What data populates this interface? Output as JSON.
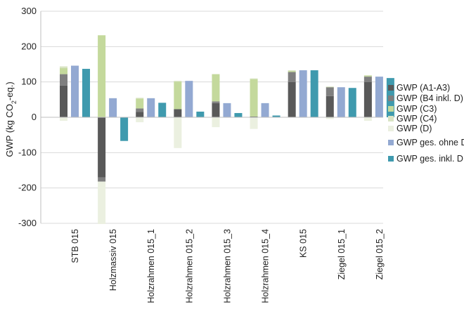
{
  "chart_data": {
    "type": "bar",
    "stacked_components": true,
    "ylabel_parts": {
      "main": "GWP (kg CO",
      "sub": "2",
      "tail": "-eq.)"
    },
    "ylim": [
      -300,
      300
    ],
    "yticks": [
      -300,
      -200,
      -100,
      0,
      100,
      200,
      300
    ],
    "grid": true,
    "legend_position": "right",
    "categories": [
      "STB 015",
      "Holzmassiv 015",
      "Holzrahmen 015_1",
      "Holzrahmen 015_2",
      "Holzrahmen 015_3",
      "Holzrahmen 015_4",
      "KS 015",
      "Ziegel 015_1",
      "Ziegel 015_2"
    ],
    "stack_series": [
      {
        "name": "GWP (A1-A3)",
        "color": "#595959",
        "values": [
          90,
          -170,
          15,
          23,
          40,
          2,
          100,
          60,
          100
        ]
      },
      {
        "name": "GWP (B4 inkl. D)",
        "color": "#7f7f7f",
        "values": [
          32,
          -12,
          10,
          0,
          5,
          0,
          28,
          25,
          15
        ]
      },
      {
        "name": "GWP (C3)",
        "color": "#c4d99c",
        "values": [
          17,
          232,
          28,
          78,
          77,
          106,
          3,
          1,
          3
        ]
      },
      {
        "name": "GWP (C4)",
        "color": "#d9e4c4",
        "values": [
          5,
          0,
          2,
          2,
          0,
          2,
          2,
          1,
          1
        ]
      },
      {
        "name": "GWP (D)",
        "color": "#ebf0e0",
        "values": [
          -10,
          -120,
          -14,
          -87,
          -28,
          -33,
          0,
          -5,
          -10
        ]
      }
    ],
    "total_series": [
      {
        "name": "GWP ges. ohne D",
        "color": "#93a9d2",
        "values": [
          146,
          54,
          54,
          103,
          40,
          40,
          133,
          85,
          115
        ]
      },
      {
        "name": "GWP ges. inkl. D",
        "color": "#3f9aae",
        "values": [
          137,
          -67,
          41,
          16,
          12,
          5,
          133,
          83,
          111
        ]
      }
    ]
  }
}
